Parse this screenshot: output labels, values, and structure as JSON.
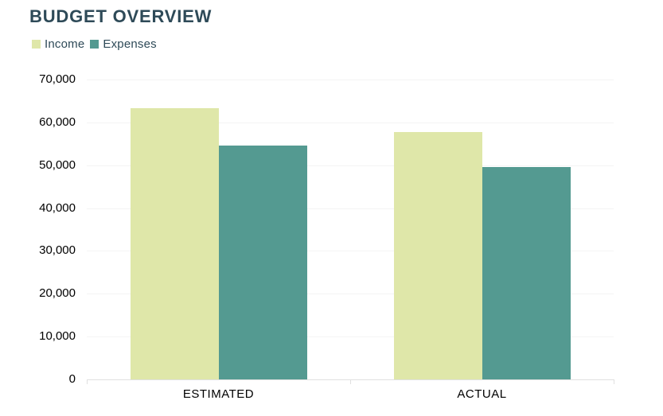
{
  "chart_data": {
    "type": "bar",
    "title": "BUDGET OVERVIEW",
    "categories": [
      "ESTIMATED",
      "ACTUAL"
    ],
    "series": [
      {
        "name": "Income",
        "color": "#DFE7A9",
        "values": [
          63400,
          57800
        ]
      },
      {
        "name": "Expenses",
        "color": "#549A91",
        "values": [
          54500,
          49600
        ]
      }
    ],
    "ylim": [
      0,
      70000
    ],
    "ytick_interval": 10000,
    "ytick_labels_top_to_bottom": [
      "70,000",
      "60,000",
      "50,000",
      "40,000",
      "30,000",
      "20,000",
      "10,000",
      "0"
    ],
    "xlabel": "",
    "ylabel": "",
    "grid": "horizontal",
    "legend_position": "top-left"
  },
  "colors": {
    "title_text": "#2E4A58",
    "legend_text": "#2E4A58",
    "axis_label_text": "#000000",
    "gridline": "#F4F4F4",
    "axis_line": "#E0E0E0",
    "background": "#FFFFFF"
  }
}
